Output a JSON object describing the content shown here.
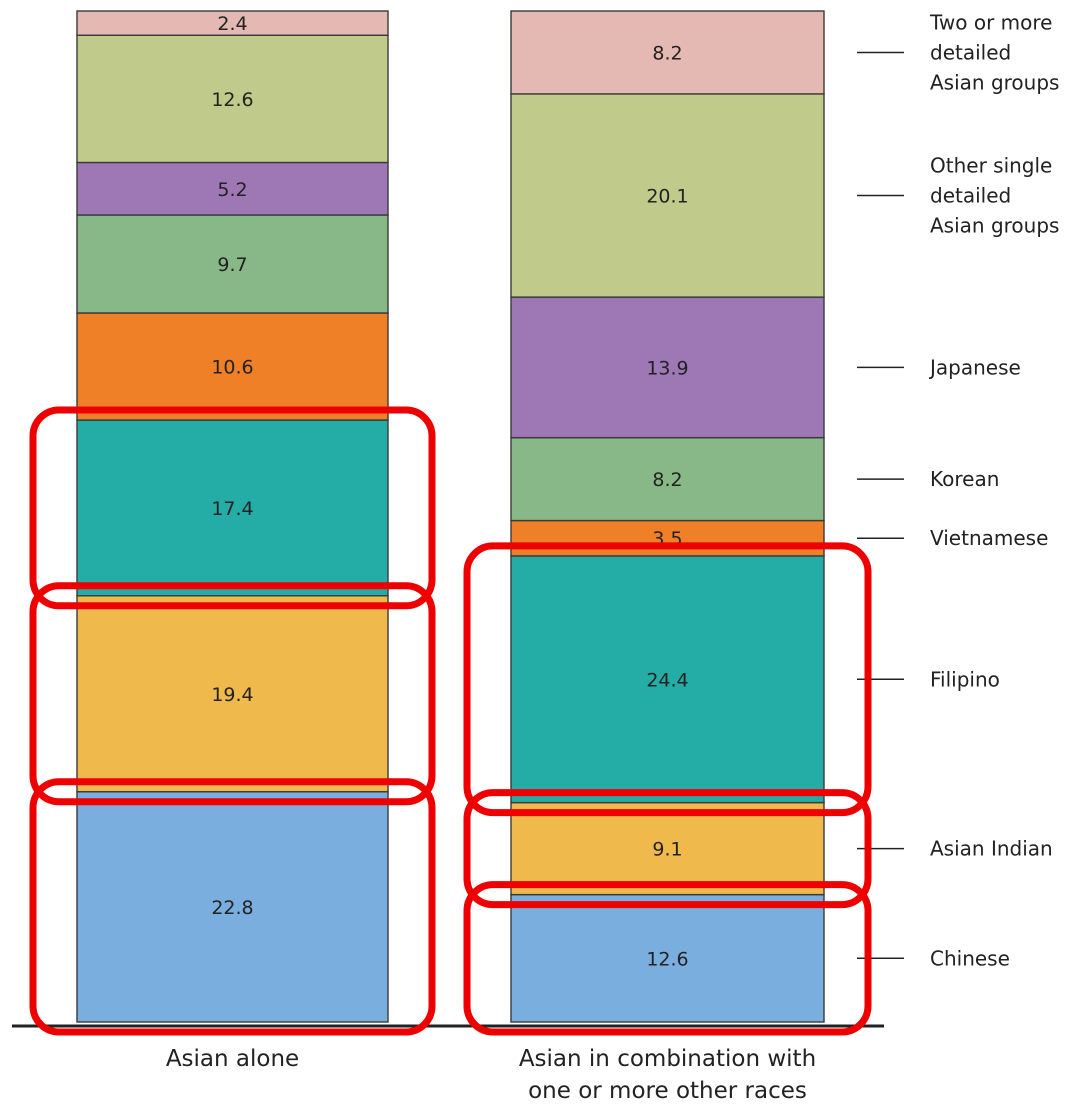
{
  "chart_data": {
    "type": "bar",
    "stacked": true,
    "categories": [
      "Asian alone",
      "Asian in combination with one or more other races"
    ],
    "category_lines": [
      [
        "Asian alone"
      ],
      [
        "Asian in combination with",
        "one or more other races"
      ]
    ],
    "series": [
      {
        "name": "Chinese",
        "color": "#7aaede",
        "values": [
          22.8,
          12.6
        ]
      },
      {
        "name": "Asian Indian",
        "color": "#efb94b",
        "values": [
          19.4,
          9.1
        ]
      },
      {
        "name": "Filipino",
        "color": "#23ada6",
        "values": [
          17.4,
          24.4
        ]
      },
      {
        "name": "Vietnamese",
        "color": "#f08028",
        "values": [
          10.6,
          3.5
        ]
      },
      {
        "name": "Korean",
        "color": "#88b887",
        "values": [
          9.7,
          8.2
        ]
      },
      {
        "name": "Japanese",
        "color": "#9e77b5",
        "values": [
          5.2,
          13.9
        ]
      },
      {
        "name": "Other single detailed Asian groups",
        "color": "#c0cb8b",
        "values": [
          12.6,
          20.1
        ]
      },
      {
        "name": "Two or more detailed Asian groups",
        "color": "#e4b8b3",
        "values": [
          2.4,
          8.2
        ]
      }
    ],
    "value_labels": [
      [
        "22.8",
        "19.4",
        "17.4",
        "10.6",
        "9.7",
        "5.2",
        "12.6",
        "2.4"
      ],
      [
        "12.6",
        "9.1",
        "24.4",
        "3.5",
        "8.2",
        "13.9",
        "20.1",
        "8.2"
      ]
    ],
    "legend_lines": [
      [
        "Chinese"
      ],
      [
        "Asian Indian"
      ],
      [
        "Filipino"
      ],
      [
        "Vietnamese"
      ],
      [
        "Korean"
      ],
      [
        "Japanese"
      ],
      [
        "Other single",
        "detailed",
        "Asian groups"
      ],
      [
        "Two or more",
        "detailed",
        "Asian groups"
      ]
    ],
    "legend_position": "right",
    "highlight_color": "#ee0000",
    "highlights": [
      {
        "category": 0,
        "series": 0
      },
      {
        "category": 0,
        "series": 1
      },
      {
        "category": 0,
        "series": 2
      },
      {
        "category": 1,
        "series": 0
      },
      {
        "category": 1,
        "series": 1
      },
      {
        "category": 1,
        "series": 2
      }
    ],
    "unit": "percent",
    "ylim": [
      0,
      100
    ]
  }
}
